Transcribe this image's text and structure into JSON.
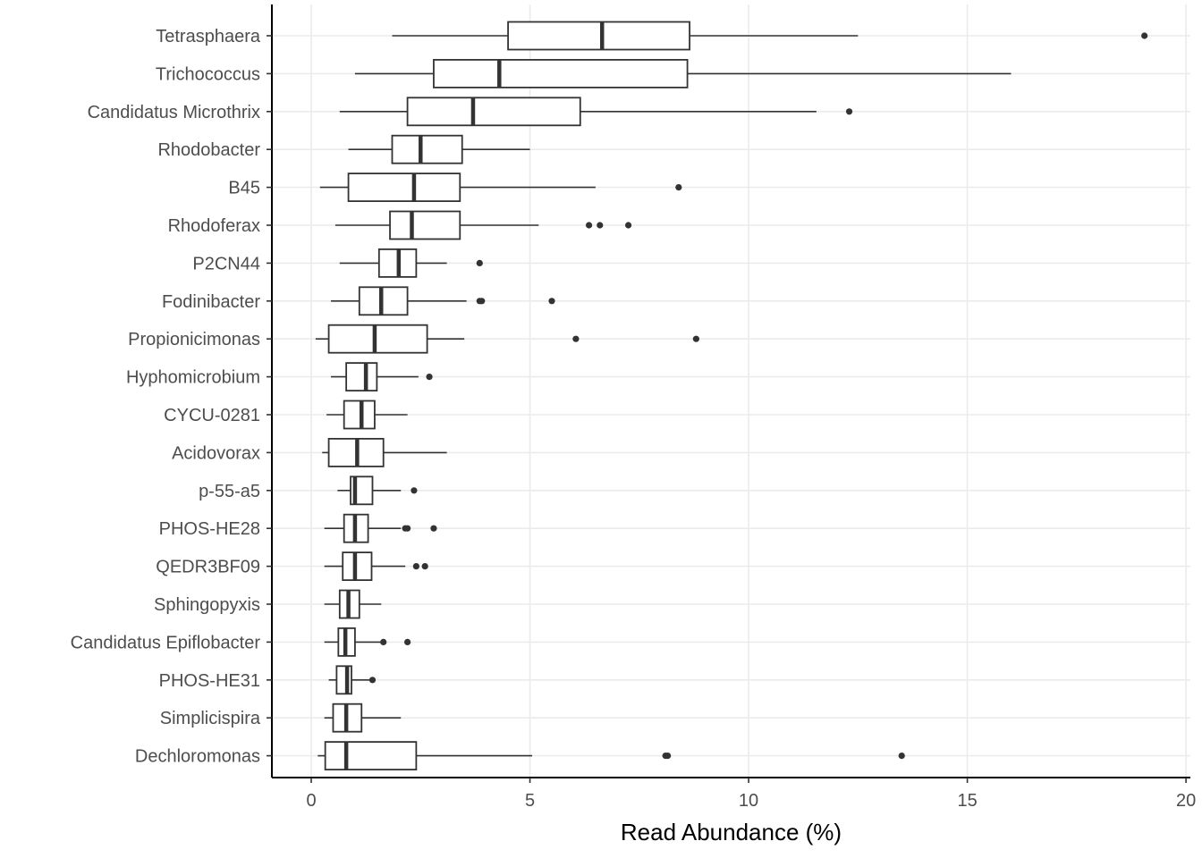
{
  "chart_data": {
    "type": "boxplot",
    "orientation": "horizontal",
    "xlabel": "Read Abundance (%)",
    "ylabel": "",
    "xlim": [
      -0.9,
      20.1
    ],
    "xticks": [
      0,
      5,
      10,
      15,
      20
    ],
    "xtick_labels": [
      "0",
      "5",
      "10",
      "15",
      "20"
    ],
    "grid": true,
    "legend": "none",
    "categories": [
      "Tetrasphaera",
      "Trichococcus",
      "Candidatus Microthrix",
      "Rhodobacter",
      "B45",
      "Rhodoferax",
      "P2CN44",
      "Fodinibacter",
      "Propionicimonas",
      "Hyphomicrobium",
      "CYCU-0281",
      "Acidovorax",
      "p-55-a5",
      "PHOS-HE28",
      "QEDR3BF09",
      "Sphingopyxis",
      "Candidatus Epiflobacter",
      "PHOS-HE31",
      "Simplicispira",
      "Dechloromonas"
    ],
    "boxes": [
      {
        "label": "Tetrasphaera",
        "whisker_low": 1.85,
        "q1": 4.5,
        "median": 6.65,
        "q3": 8.65,
        "whisker_high": 12.5,
        "outliers": [
          19.05
        ]
      },
      {
        "label": "Trichococcus",
        "whisker_low": 1.0,
        "q1": 2.8,
        "median": 4.3,
        "q3": 8.6,
        "whisker_high": 16.0,
        "outliers": []
      },
      {
        "label": "Candidatus Microthrix",
        "whisker_low": 0.65,
        "q1": 2.2,
        "median": 3.7,
        "q3": 6.15,
        "whisker_high": 11.55,
        "outliers": [
          12.3
        ]
      },
      {
        "label": "Rhodobacter",
        "whisker_low": 0.85,
        "q1": 1.85,
        "median": 2.5,
        "q3": 3.45,
        "whisker_high": 5.0,
        "outliers": []
      },
      {
        "label": "B45",
        "whisker_low": 0.2,
        "q1": 0.85,
        "median": 2.35,
        "q3": 3.4,
        "whisker_high": 6.5,
        "outliers": [
          8.4
        ]
      },
      {
        "label": "Rhodoferax",
        "whisker_low": 0.55,
        "q1": 1.8,
        "median": 2.3,
        "q3": 3.4,
        "whisker_high": 5.2,
        "outliers": [
          6.35,
          6.6,
          7.25
        ]
      },
      {
        "label": "P2CN44",
        "whisker_low": 0.65,
        "q1": 1.55,
        "median": 2.0,
        "q3": 2.4,
        "whisker_high": 3.1,
        "outliers": [
          3.85
        ]
      },
      {
        "label": "Fodinibacter",
        "whisker_low": 0.45,
        "q1": 1.1,
        "median": 1.6,
        "q3": 2.2,
        "whisker_high": 3.55,
        "outliers": [
          3.85,
          3.9,
          5.5
        ]
      },
      {
        "label": "Propionicimonas",
        "whisker_low": 0.1,
        "q1": 0.4,
        "median": 1.45,
        "q3": 2.65,
        "whisker_high": 3.5,
        "outliers": [
          6.05,
          8.8
        ]
      },
      {
        "label": "Hyphomicrobium",
        "whisker_low": 0.45,
        "q1": 0.8,
        "median": 1.25,
        "q3": 1.5,
        "whisker_high": 2.45,
        "outliers": [
          2.7
        ]
      },
      {
        "label": "CYCU-0281",
        "whisker_low": 0.35,
        "q1": 0.75,
        "median": 1.15,
        "q3": 1.45,
        "whisker_high": 2.2,
        "outliers": []
      },
      {
        "label": "Acidovorax",
        "whisker_low": 0.25,
        "q1": 0.4,
        "median": 1.05,
        "q3": 1.65,
        "whisker_high": 3.1,
        "outliers": []
      },
      {
        "label": "p-55-a5",
        "whisker_low": 0.6,
        "q1": 0.9,
        "median": 1.0,
        "q3": 1.4,
        "whisker_high": 2.05,
        "outliers": [
          2.35
        ]
      },
      {
        "label": "PHOS-HE28",
        "whisker_low": 0.3,
        "q1": 0.75,
        "median": 1.0,
        "q3": 1.3,
        "whisker_high": 2.05,
        "outliers": [
          2.15,
          2.2,
          2.8
        ]
      },
      {
        "label": "QEDR3BF09",
        "whisker_low": 0.3,
        "q1": 0.72,
        "median": 1.0,
        "q3": 1.38,
        "whisker_high": 2.15,
        "outliers": [
          2.4,
          2.6
        ]
      },
      {
        "label": "Sphingopyxis",
        "whisker_low": 0.3,
        "q1": 0.65,
        "median": 0.85,
        "q3": 1.1,
        "whisker_high": 1.6,
        "outliers": []
      },
      {
        "label": "Candidatus Epiflobacter",
        "whisker_low": 0.3,
        "q1": 0.62,
        "median": 0.78,
        "q3": 1.0,
        "whisker_high": 1.6,
        "outliers": [
          1.65,
          2.2
        ]
      },
      {
        "label": "PHOS-HE31",
        "whisker_low": 0.4,
        "q1": 0.58,
        "median": 0.82,
        "q3": 0.92,
        "whisker_high": 1.38,
        "outliers": [
          1.4
        ]
      },
      {
        "label": "Simplicispira",
        "whisker_low": 0.3,
        "q1": 0.5,
        "median": 0.8,
        "q3": 1.15,
        "whisker_high": 2.05,
        "outliers": []
      },
      {
        "label": "Dechloromonas",
        "whisker_low": 0.15,
        "q1": 0.32,
        "median": 0.8,
        "q3": 2.4,
        "whisker_high": 5.05,
        "outliers": [
          8.1,
          8.15,
          13.5
        ]
      }
    ]
  }
}
